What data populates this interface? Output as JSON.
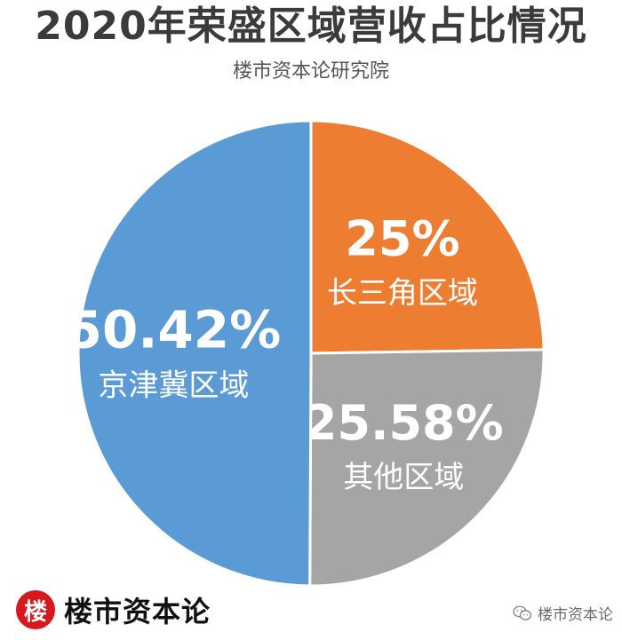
{
  "title": "2020年荣盛区域营收占比情况",
  "subtitle": "楼市资本论研究院",
  "chart_data": {
    "type": "pie",
    "title": "2020年荣盛区域营收占比情况",
    "subtitle": "楼市资本论研究院",
    "slices": [
      {
        "name": "长三角区域",
        "value": 25,
        "label": "25%",
        "color": "#ed7d31"
      },
      {
        "name": "其他区域",
        "value": 25.58,
        "label": "25.58%",
        "color": "#a5a5a5"
      },
      {
        "name": "京津冀区域",
        "value": 50.42,
        "label": "50.42%",
        "color": "#5b9bd5"
      }
    ],
    "start": "12 o'clock",
    "direction": "clockwise",
    "legend": "none"
  },
  "brand": {
    "seal_char": "楼",
    "name": "楼市资本论"
  },
  "watermark": {
    "text": "楼市资本论",
    "icon": "wechat-icon"
  }
}
